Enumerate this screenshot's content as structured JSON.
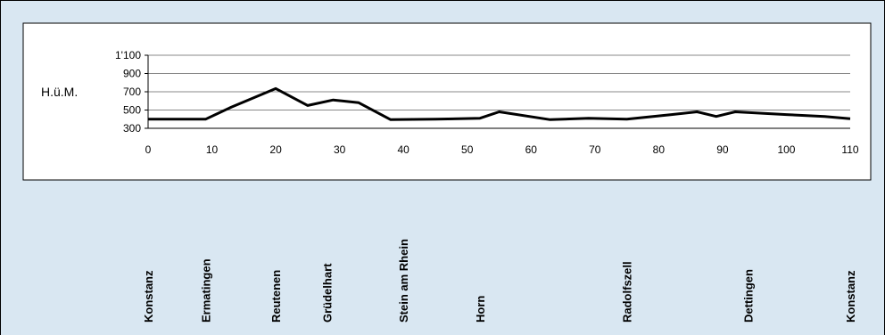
{
  "chart_data": {
    "type": "line",
    "ylabel": "H.ü.M.",
    "ylim": [
      300,
      1100
    ],
    "y_ticks": [
      300,
      500,
      700,
      900,
      1100
    ],
    "y_tick_labels": [
      "300",
      "500",
      "700",
      "900",
      "1'100"
    ],
    "xlim": [
      0,
      110
    ],
    "x_ticks": [
      0,
      10,
      20,
      30,
      40,
      50,
      60,
      70,
      80,
      90,
      100,
      110
    ],
    "x_tick_labels": [
      "0",
      "10",
      "20",
      "30",
      "40",
      "50",
      "60",
      "70",
      "80",
      "90",
      "100",
      "110"
    ],
    "grid": true,
    "series": [
      {
        "color": "#000000",
        "x": [
          0,
          9,
          13,
          20,
          25,
          29,
          33,
          38,
          45,
          52,
          55,
          63,
          69,
          75,
          82,
          86,
          89,
          92,
          100,
          106,
          110
        ],
        "y": [
          400,
          400,
          530,
          735,
          550,
          610,
          580,
          395,
          400,
          410,
          480,
          395,
          410,
          400,
          450,
          480,
          430,
          480,
          450,
          430,
          405
        ]
      }
    ],
    "places": [
      {
        "name": "Konstanz",
        "x": 0
      },
      {
        "name": "Ermatingen",
        "x": 9
      },
      {
        "name": "Reutenen",
        "x": 20
      },
      {
        "name": "Grüdelhart",
        "x": 28
      },
      {
        "name": "Stein am Rhein",
        "x": 40
      },
      {
        "name": "Horn",
        "x": 52
      },
      {
        "name": "Radolfszell",
        "x": 75
      },
      {
        "name": "Dettingen",
        "x": 94
      },
      {
        "name": "Konstanz",
        "x": 110
      }
    ]
  },
  "colors": {
    "background": "#d9e7f2",
    "plot_background": "#ffffff",
    "line": "#000000",
    "grid": "#888888"
  }
}
